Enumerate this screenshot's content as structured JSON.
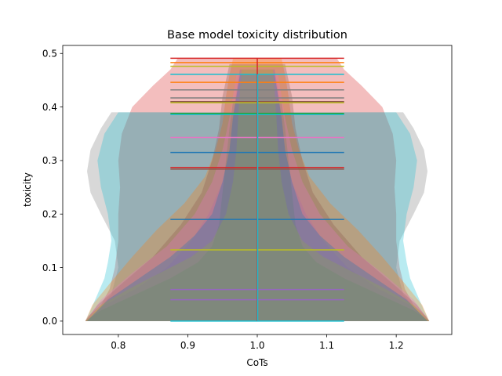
{
  "chart_data": {
    "type": "violin",
    "title": "Base model toxicity distribution",
    "xlabel": "CoTs",
    "ylabel": "toxicity",
    "xlim": [
      0.72,
      1.28
    ],
    "ylim": [
      -0.025,
      0.515
    ],
    "xticks": [
      0.8,
      0.9,
      1.0,
      1.1,
      1.2
    ],
    "xtick_labels": [
      "0.8",
      "0.9",
      "1.0",
      "1.1",
      "1.2"
    ],
    "yticks": [
      0.0,
      0.1,
      0.2,
      0.3,
      0.4,
      0.5
    ],
    "ytick_labels": [
      "0.0",
      "0.1",
      "0.2",
      "0.3",
      "0.4",
      "0.5"
    ],
    "grid": false,
    "violin_position": 1.0,
    "violin_half_width": 0.25,
    "cap_half_width": 0.125,
    "fill_alpha": 0.3,
    "series": [
      {
        "color": "#d62728",
        "min": 0.0,
        "max": 0.49,
        "mean": 0.285,
        "profile": [
          [
            0.0,
            0.99
          ],
          [
            0.01,
            0.97
          ],
          [
            0.03,
            0.9
          ],
          [
            0.06,
            0.85
          ],
          [
            0.1,
            0.82
          ],
          [
            0.15,
            0.8
          ],
          [
            0.2,
            0.8
          ],
          [
            0.25,
            0.79
          ],
          [
            0.3,
            0.8
          ],
          [
            0.35,
            0.78
          ],
          [
            0.4,
            0.72
          ],
          [
            0.44,
            0.6
          ],
          [
            0.47,
            0.5
          ],
          [
            0.49,
            0.46
          ]
        ]
      },
      {
        "color": "#7f7f7f",
        "min": 0.0,
        "max": 0.39,
        "mean": 0.41,
        "profile": [
          [
            0.0,
            0.98
          ],
          [
            0.02,
            0.92
          ],
          [
            0.05,
            0.84
          ],
          [
            0.1,
            0.8
          ],
          [
            0.15,
            0.82
          ],
          [
            0.2,
            0.9
          ],
          [
            0.24,
            0.96
          ],
          [
            0.28,
            0.98
          ],
          [
            0.32,
            0.96
          ],
          [
            0.36,
            0.9
          ],
          [
            0.39,
            0.84
          ]
        ]
      },
      {
        "color": "#17becf",
        "min": 0.0,
        "max": 0.39,
        "mean": 0.46,
        "profile": [
          [
            0.0,
            0.99
          ],
          [
            0.02,
            0.96
          ],
          [
            0.05,
            0.92
          ],
          [
            0.08,
            0.88
          ],
          [
            0.11,
            0.86
          ],
          [
            0.15,
            0.84
          ],
          [
            0.2,
            0.86
          ],
          [
            0.25,
            0.9
          ],
          [
            0.3,
            0.92
          ],
          [
            0.35,
            0.88
          ],
          [
            0.39,
            0.8
          ]
        ]
      },
      {
        "color": "#ff7f0e",
        "min": 0.0,
        "max": 0.49,
        "mean": 0.445,
        "profile": [
          [
            0.0,
            0.99
          ],
          [
            0.03,
            0.95
          ],
          [
            0.07,
            0.85
          ],
          [
            0.12,
            0.72
          ],
          [
            0.17,
            0.58
          ],
          [
            0.22,
            0.42
          ],
          [
            0.27,
            0.3
          ],
          [
            0.32,
            0.24
          ],
          [
            0.37,
            0.2
          ],
          [
            0.42,
            0.18
          ],
          [
            0.46,
            0.16
          ],
          [
            0.49,
            0.14
          ]
        ]
      },
      {
        "color": "#9467bd",
        "min": 0.0,
        "max": 0.47,
        "mean": 0.06,
        "profile": [
          [
            0.0,
            0.99
          ],
          [
            0.03,
            0.88
          ],
          [
            0.06,
            0.7
          ],
          [
            0.1,
            0.52
          ],
          [
            0.15,
            0.38
          ],
          [
            0.2,
            0.28
          ],
          [
            0.26,
            0.2
          ],
          [
            0.32,
            0.16
          ],
          [
            0.38,
            0.14
          ],
          [
            0.43,
            0.12
          ],
          [
            0.47,
            0.1
          ]
        ]
      },
      {
        "color": "#2ca02c",
        "min": 0.0,
        "max": 0.41,
        "mean": 0.385,
        "profile": [
          [
            0.0,
            0.99
          ],
          [
            0.02,
            0.9
          ],
          [
            0.05,
            0.7
          ],
          [
            0.08,
            0.5
          ],
          [
            0.11,
            0.34
          ],
          [
            0.14,
            0.26
          ],
          [
            0.18,
            0.22
          ],
          [
            0.24,
            0.2
          ],
          [
            0.3,
            0.18
          ],
          [
            0.36,
            0.16
          ],
          [
            0.41,
            0.14
          ]
        ]
      },
      {
        "color": "#8c564b",
        "min": 0.0,
        "max": 0.48,
        "mean": 0.41,
        "profile": [
          [
            0.0,
            0.99
          ],
          [
            0.03,
            0.92
          ],
          [
            0.07,
            0.78
          ],
          [
            0.12,
            0.6
          ],
          [
            0.18,
            0.44
          ],
          [
            0.24,
            0.32
          ],
          [
            0.3,
            0.26
          ],
          [
            0.36,
            0.22
          ],
          [
            0.42,
            0.2
          ],
          [
            0.48,
            0.16
          ]
        ]
      },
      {
        "color": "#e377c2",
        "min": 0.0,
        "max": 0.46,
        "mean": 0.34,
        "profile": [
          [
            0.0,
            0.99
          ],
          [
            0.04,
            0.9
          ],
          [
            0.09,
            0.72
          ],
          [
            0.14,
            0.52
          ],
          [
            0.2,
            0.36
          ],
          [
            0.26,
            0.26
          ],
          [
            0.32,
            0.2
          ],
          [
            0.38,
            0.16
          ],
          [
            0.42,
            0.14
          ],
          [
            0.46,
            0.12
          ]
        ]
      },
      {
        "color": "#bcbd22",
        "min": 0.0,
        "max": 0.47,
        "mean": 0.133,
        "profile": [
          [
            0.0,
            0.99
          ],
          [
            0.03,
            0.9
          ],
          [
            0.06,
            0.74
          ],
          [
            0.09,
            0.56
          ],
          [
            0.12,
            0.38
          ],
          [
            0.15,
            0.26
          ],
          [
            0.2,
            0.18
          ],
          [
            0.26,
            0.14
          ],
          [
            0.32,
            0.12
          ],
          [
            0.38,
            0.11
          ],
          [
            0.43,
            0.1
          ],
          [
            0.47,
            0.09
          ]
        ]
      },
      {
        "color": "#1f77b4",
        "min": 0.0,
        "max": 0.46,
        "mean": 0.19,
        "profile": [
          [
            0.0,
            0.98
          ],
          [
            0.04,
            0.86
          ],
          [
            0.08,
            0.68
          ],
          [
            0.12,
            0.5
          ],
          [
            0.16,
            0.36
          ],
          [
            0.2,
            0.26
          ],
          [
            0.26,
            0.2
          ],
          [
            0.32,
            0.16
          ],
          [
            0.38,
            0.14
          ],
          [
            0.42,
            0.12
          ],
          [
            0.46,
            0.1
          ]
        ]
      }
    ],
    "horizontal_lines": [
      {
        "y": 0.491,
        "color": "#d62728"
      },
      {
        "y": 0.483,
        "color": "#ff7f0e"
      },
      {
        "y": 0.476,
        "color": "#bcbd22"
      },
      {
        "y": 0.461,
        "color": "#17becf"
      },
      {
        "y": 0.446,
        "color": "#ff7f0e"
      },
      {
        "y": 0.432,
        "color": "#7f7f7f"
      },
      {
        "y": 0.417,
        "color": "#7f7f7f"
      },
      {
        "y": 0.41,
        "color": "#8c564b"
      },
      {
        "y": 0.408,
        "color": "#bcbd22"
      },
      {
        "y": 0.388,
        "color": "#2ca02c"
      },
      {
        "y": 0.386,
        "color": "#17becf"
      },
      {
        "y": 0.343,
        "color": "#e377c2"
      },
      {
        "y": 0.315,
        "color": "#1f77b4"
      },
      {
        "y": 0.287,
        "color": "#d62728"
      },
      {
        "y": 0.284,
        "color": "#8c564b"
      },
      {
        "y": 0.19,
        "color": "#1f77b4"
      },
      {
        "y": 0.133,
        "color": "#bcbd22"
      },
      {
        "y": 0.059,
        "color": "#9467bd"
      },
      {
        "y": 0.04,
        "color": "#9467bd"
      },
      {
        "y": 0.0,
        "color": "#17becf"
      }
    ],
    "stems": [
      {
        "color": "#d62728",
        "low": 0.0,
        "high": 0.491
      },
      {
        "color": "#17becf",
        "low": 0.0,
        "high": 0.461
      }
    ]
  }
}
